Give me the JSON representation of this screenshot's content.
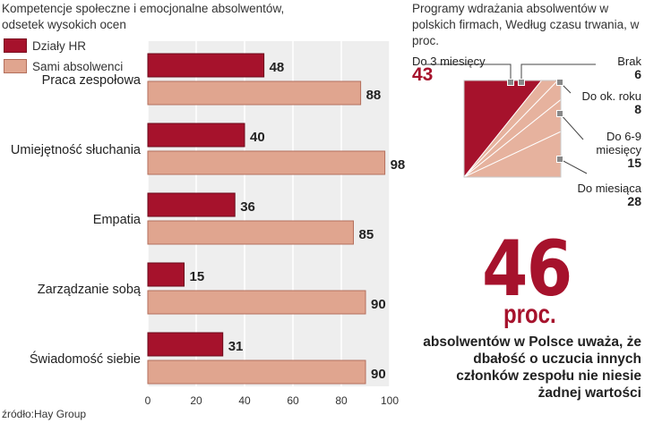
{
  "left_title": "Kompetencje społeczne i emocjonalne absolwentów, odsetek wysokich ocen",
  "right_title": "Programy wdrażania absolwentów w polskich firmach, Według czasu trwania, w proc.",
  "source": "źródło:Hay Group",
  "colors": {
    "hr": "#a6122c",
    "graduates": "#e0a58f",
    "panel": "#eeeeee",
    "accent": "#a6122c"
  },
  "chart_data": [
    {
      "type": "bar",
      "orientation": "horizontal",
      "categories": [
        "Praca zespołowa",
        "Umiejętność słuchania",
        "Empatia",
        "Zarządzanie sobą",
        "Świadomość siebie"
      ],
      "series": [
        {
          "name": "Działy  HR",
          "values": [
            48,
            40,
            36,
            15,
            31
          ]
        },
        {
          "name": "Sami absolwenci",
          "values": [
            88,
            98,
            85,
            90,
            90
          ]
        }
      ],
      "xlim": [
        0,
        100
      ],
      "xticks": [
        "0",
        "20",
        "40",
        "60",
        "80",
        "100"
      ],
      "grid": true,
      "legend": "top-left"
    },
    {
      "type": "pie",
      "labels": [
        "Do 3 miesięcy",
        "Brak",
        "Do ok. roku",
        "Do 6-9 miesięcy",
        "Do miesiąca"
      ],
      "values": [
        43,
        6,
        8,
        15,
        28
      ],
      "value_labels": [
        "43",
        "6",
        "8",
        "15",
        "28"
      ],
      "label_lines": [
        [
          "Do 3 miesięcy"
        ],
        [
          "Brak"
        ],
        [
          "Do ok. roku"
        ],
        [
          "Do 6-9",
          "miesięcy"
        ],
        [
          "Do miesiąca"
        ]
      ]
    }
  ],
  "highlight": {
    "value": "46",
    "unit": "proc.",
    "statement": "absolwentów w Polsce uważa, że dbałość o uczucia innych członków zespołu nie niesie żadnej wartości"
  }
}
